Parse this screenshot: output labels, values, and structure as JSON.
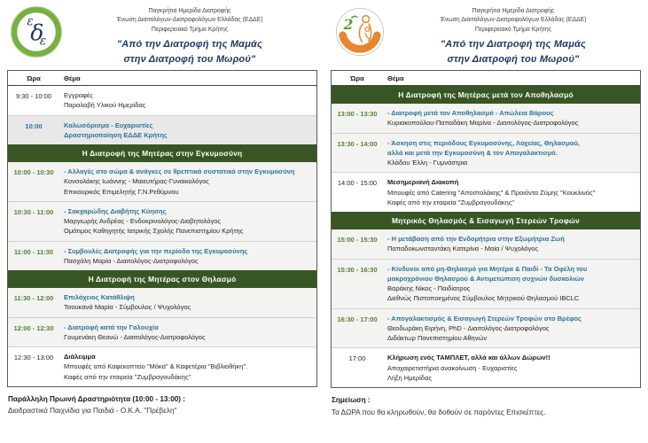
{
  "header": {
    "org_lines": [
      "Παγκρήτια Ημερίδα Διατροφής",
      "Ένωση Διαιτολόγων-Διατροφολόγων Ελλάδας  (ΕΔΔΕ)",
      "Περιφερειακό Τμήμα Κρήτης"
    ],
    "title_line1": "\"Από την Διατροφή της Μαμάς",
    "title_line2": "στην Διατροφή του Μωρού\"",
    "left_logo_text": "εδδε",
    "right_logo_text": "2"
  },
  "colors": {
    "section_green": "#375623",
    "time_green": "#538135",
    "topic_blue": "#2d7396",
    "logo_green": "#76b043",
    "logo_orange": "#e8862e",
    "title_navy": "#1f3864"
  },
  "columns": {
    "left": {
      "col_time": "Ώρα",
      "col_topic": "Θέμα",
      "rows": [
        {
          "type": "item",
          "time": "9:30 - 10:00",
          "time_style": "black",
          "shade": "white",
          "lines": [
            {
              "text": "Εγγραφές",
              "style": "black"
            },
            {
              "text": "Παραλαβή Υλικού Ημερίδας",
              "style": "black"
            }
          ]
        },
        {
          "type": "item",
          "time": "10:00",
          "time_style": "blue",
          "shade": "gray",
          "lines": [
            {
              "text": "Καλωσόρισμα  -  Ευχαριστίες",
              "style": "blue-bold"
            },
            {
              "text": "Δραστηριοποίηση ΕΔΔΕ Κρήτης",
              "style": "blue-bold"
            }
          ]
        },
        {
          "type": "section",
          "label": "Η Διατροφή της Μητέρας στην Εγκυμοσύνη"
        },
        {
          "type": "item",
          "time": "10:00 - 10:30",
          "time_style": "green",
          "shade": "light",
          "lines": [
            {
              "text": "- Αλλαγές στο σώμα & ανάγκες σε θρεπτικά συστατικά στην Εγκυμοσύνη",
              "style": "blue-bold"
            },
            {
              "text": "Κονσολάκης Ιωάννης  -  Μαιευτήρας-Γυναικολόγος",
              "style": "black"
            },
            {
              "text": "Επικουρικός Επιμελητής  Γ.Ν.Ρεθύμνου",
              "style": "black"
            }
          ]
        },
        {
          "type": "item",
          "time": "10:30 - 11:00",
          "time_style": "green",
          "shade": "light",
          "lines": [
            {
              "text": "- Σακχαρώδης Διαβήτης Κύησης",
              "style": "blue-bold"
            },
            {
              "text": "Μαργιωρής Ανδρέας  -  Ενδοκρινολόγος-Διαβητολόγος",
              "style": "black"
            },
            {
              "text": "Ομότιμος Καθηγητής Ιατρικής Σχολής Πανεπιστημίου Κρήτης",
              "style": "black"
            }
          ]
        },
        {
          "type": "item",
          "time": "11:00 - 11:30",
          "time_style": "green",
          "shade": "light",
          "lines": [
            {
              "text": "- Συμβουλές Διατροφής για την περίοδο της Εγκυμοσύνης",
              "style": "blue-bold"
            },
            {
              "text": "Πασχάλη Μαρία  -  Διαιτολόγος-Διατροφολόγος",
              "style": "black"
            }
          ]
        },
        {
          "type": "section",
          "label": "Η Διατροφή της Μητέρας στον Θηλασμό"
        },
        {
          "type": "item",
          "time": "11:30 - 12:00",
          "time_style": "green",
          "shade": "light",
          "lines": [
            {
              "text": "Επιλόχειος Κατάθλιψη",
              "style": "blue-bold"
            },
            {
              "text": "Τσουκανά Μαρία  -  Σύμβουλος / Ψυχολόγος",
              "style": "black"
            }
          ]
        },
        {
          "type": "item",
          "time": "12:00 - 12:30",
          "time_style": "green",
          "shade": "light",
          "lines": [
            {
              "text": "- Διατροφή κατά την Γαλουχία",
              "style": "blue-bold"
            },
            {
              "text": "Γουμενάκη Θεανώ  -  Διαιτολόγος-Διατροφολόγος",
              "style": "black"
            }
          ]
        },
        {
          "type": "item",
          "time": "12:30 - 13:00",
          "time_style": "black",
          "shade": "white",
          "lines": [
            {
              "text": "Διάλειμμα",
              "style": "black-bold"
            },
            {
              "text": "Μπουφές από Καφεκοπτείο \"Μόκα\"  &  Καφετέρια \"Βιβλιοθήκη\".",
              "style": "black"
            },
            {
              "text": "Καφές από  την εταιρεία \"Ζυμβραγουδάκης\"",
              "style": "black"
            }
          ]
        }
      ]
    },
    "right": {
      "col_time": "Ώρα",
      "col_topic": "Θέμα",
      "rows": [
        {
          "type": "section",
          "label": "Η Διατροφή της Μητέρας μετά τον Αποθηλασμό"
        },
        {
          "type": "item",
          "time": "13:00 - 13:30",
          "time_style": "green",
          "shade": "light",
          "lines": [
            {
              "text": "- Διατροφή μετά τον Αποθηλασμό - Απώλεια Βάρους",
              "style": "blue-bold"
            },
            {
              "text": "Κυριακοπούλου-Παπαδάκη Μαρίνα  -  Διαιτολόγος-Διατροφολόγος",
              "style": "black"
            }
          ]
        },
        {
          "type": "item",
          "time": "13:30 - 14:00",
          "time_style": "green",
          "shade": "light",
          "lines": [
            {
              "text": "- Άσκηση στις περιόδους Εγκυμοσύνης, Λοχείας, Θηλασμού,",
              "style": "blue-bold"
            },
            {
              "text": "αλλά και μετά την Εγκυμοσύνη & τον Απογαλακτισμό.",
              "style": "blue-bold"
            },
            {
              "text": "Κλάδου Έλλη  -  Γυμνάστρια",
              "style": "black"
            }
          ]
        },
        {
          "type": "item",
          "time": "14:00 - 15:00",
          "time_style": "black",
          "shade": "white",
          "lines": [
            {
              "text": "Μεσημεριανή Διακοπή",
              "style": "black-bold"
            },
            {
              "text": "Μπουφές από  Catering \"Αποστολάκης\"  &  Προιόντα Ζύμης \"Κουκλινός\"",
              "style": "black"
            },
            {
              "text": "Καφές από  την εταιρεία \"Ζυμβραγουδάκης\"",
              "style": "black"
            }
          ]
        },
        {
          "type": "section",
          "label": "Μητρικός Θηλασμός  &  Εισαγωγή Στερεών Τροφών"
        },
        {
          "type": "item",
          "time": "15:00 - 15:30",
          "time_style": "green",
          "shade": "light",
          "lines": [
            {
              "text": "- Η μετάβαση από την Ενδομήτρια στην Εξωμήτρια Ζωή",
              "style": "blue-bold"
            },
            {
              "text": "Παπαδοκωνσταντάκη Κατερίνα  -  Μαία / Ψυχολόγος",
              "style": "black"
            }
          ]
        },
        {
          "type": "item",
          "time": "15:30 - 16:30",
          "time_style": "green",
          "shade": "light",
          "lines": [
            {
              "text": "- Κίνδυνοι από μη-Θηλασμό για Μητέρα & Παιδί  -  Τα Οφέλη του",
              "style": "blue-bold"
            },
            {
              "text": "μακροχρόνιου Θηλασμού  &  Αντιμετώπιση συχνών δυσκολιών",
              "style": "blue-bold"
            },
            {
              "text": "Βαράκης Νίκος  -  Παιδίατρος",
              "style": "black"
            },
            {
              "text": "Διεθνώς Πιστοποιημένος Σύμβουλος Μητρικού Θηλασμού IBCLC",
              "style": "black"
            }
          ]
        },
        {
          "type": "item",
          "time": "16:30 - 17:00",
          "time_style": "green",
          "shade": "light",
          "lines": [
            {
              "text": "- Απογαλακτισμός & Εισαγωγή Στερεών Τροφών στο Βρέφος",
              "style": "blue-bold"
            },
            {
              "text": "Θεοδωράκη Ειρήνη, PhD  -  Διαιτολόγος-Διατροφολόγος",
              "style": "black"
            },
            {
              "text": "Διδάκτωρ Πανεπιστημίου Αθηνών",
              "style": "black"
            }
          ]
        },
        {
          "type": "item",
          "time": "17:00",
          "time_style": "black",
          "shade": "white",
          "lines": [
            {
              "text": "Κλήρωση ενός ΤΑΜΠΛΕΤ, αλλά και άλλων Δώρων!!",
              "style": "black-bold"
            },
            {
              "text": "Αποχαιρετιστήρια ανακοίνωση   -   Ευχαριστίες",
              "style": "black"
            },
            {
              "text": "Λήξη Ημερίδας",
              "style": "black"
            }
          ]
        }
      ]
    }
  },
  "footers": {
    "left": {
      "bold": "Παράλληλη Πρωινή Δραστηριότητα  (10:00  - 13:00)  :",
      "normal": "Διαδραστικά Παιχνίδια για Παιδιά  -  Ο.Κ.Α. \"Πρέβελη\""
    },
    "right": {
      "bold": "Σημείωση :",
      "normal": "Τα ΔΩΡΑ που θα κληρωθούν, θα δοθούν σε παρόντες Επισκέπτες."
    }
  }
}
